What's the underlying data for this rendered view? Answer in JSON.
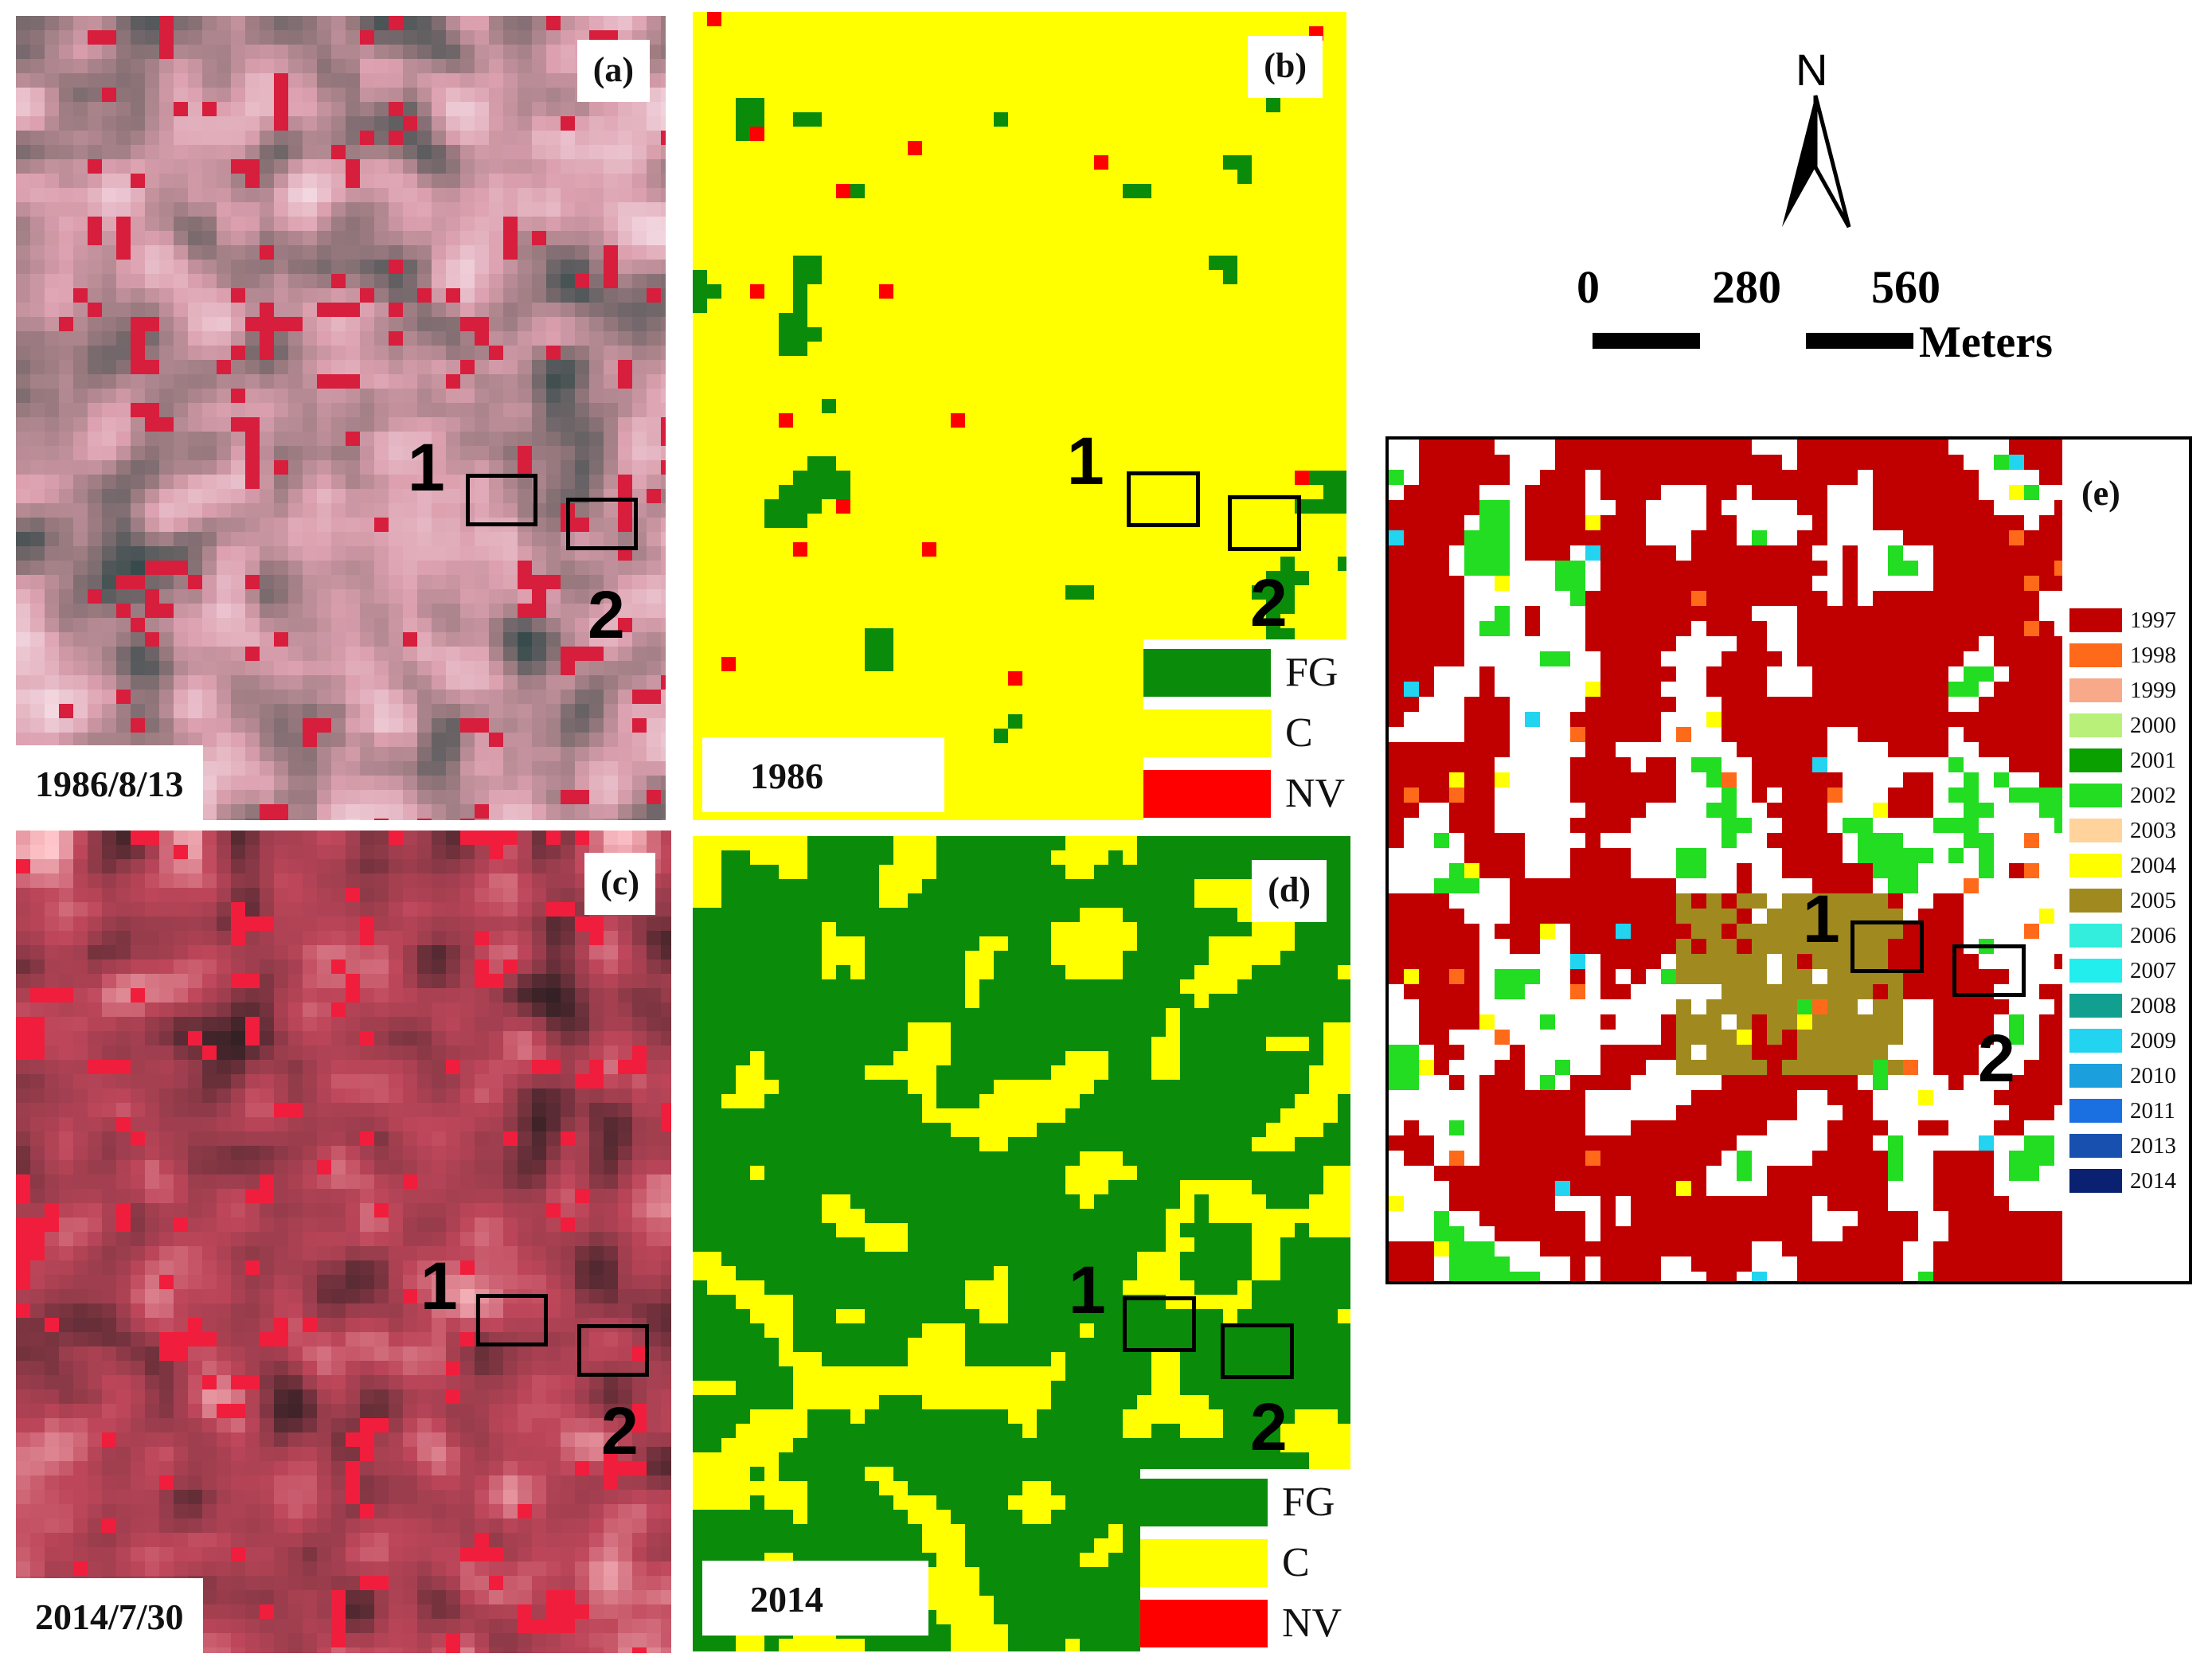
{
  "panels": {
    "a": {
      "tag": "(a)",
      "date": "1986/8/13"
    },
    "b": {
      "tag": "(b)",
      "year": "1986"
    },
    "c": {
      "tag": "(c)",
      "date": "2014/7/30"
    },
    "d": {
      "tag": "(d)",
      "year": "2014"
    },
    "e": {
      "tag": "(e)"
    }
  },
  "markers": {
    "site1": "1",
    "site2": "2"
  },
  "class_legend": [
    {
      "code": "FG",
      "color": "#0a8c0a"
    },
    {
      "code": "C",
      "color": "#ffff00"
    },
    {
      "code": "NV",
      "color": "#ff0000"
    }
  ],
  "north": {
    "label": "N"
  },
  "scale_bar": {
    "ticks": [
      "0",
      "280",
      "560"
    ],
    "unit": "Meters"
  },
  "year_legend": [
    {
      "year": "1997",
      "color": "#c00000"
    },
    {
      "year": "1998",
      "color": "#ff6a1a"
    },
    {
      "year": "1999",
      "color": "#f7a98a"
    },
    {
      "year": "2000",
      "color": "#b8f07a"
    },
    {
      "year": "2001",
      "color": "#0aa000"
    },
    {
      "year": "2002",
      "color": "#22dd22"
    },
    {
      "year": "2003",
      "color": "#ffd39b"
    },
    {
      "year": "2004",
      "color": "#ffff00"
    },
    {
      "year": "2005",
      "color": "#a08a20"
    },
    {
      "year": "2006",
      "color": "#33eedd"
    },
    {
      "year": "2007",
      "color": "#22eeee"
    },
    {
      "year": "2008",
      "color": "#11a090"
    },
    {
      "year": "2009",
      "color": "#22d4f0"
    },
    {
      "year": "2010",
      "color": "#1ba0dd"
    },
    {
      "year": "2011",
      "color": "#1a70e0"
    },
    {
      "year": "2013",
      "color": "#1850b0"
    },
    {
      "year": "2014",
      "color": "#0a2070"
    }
  ]
}
